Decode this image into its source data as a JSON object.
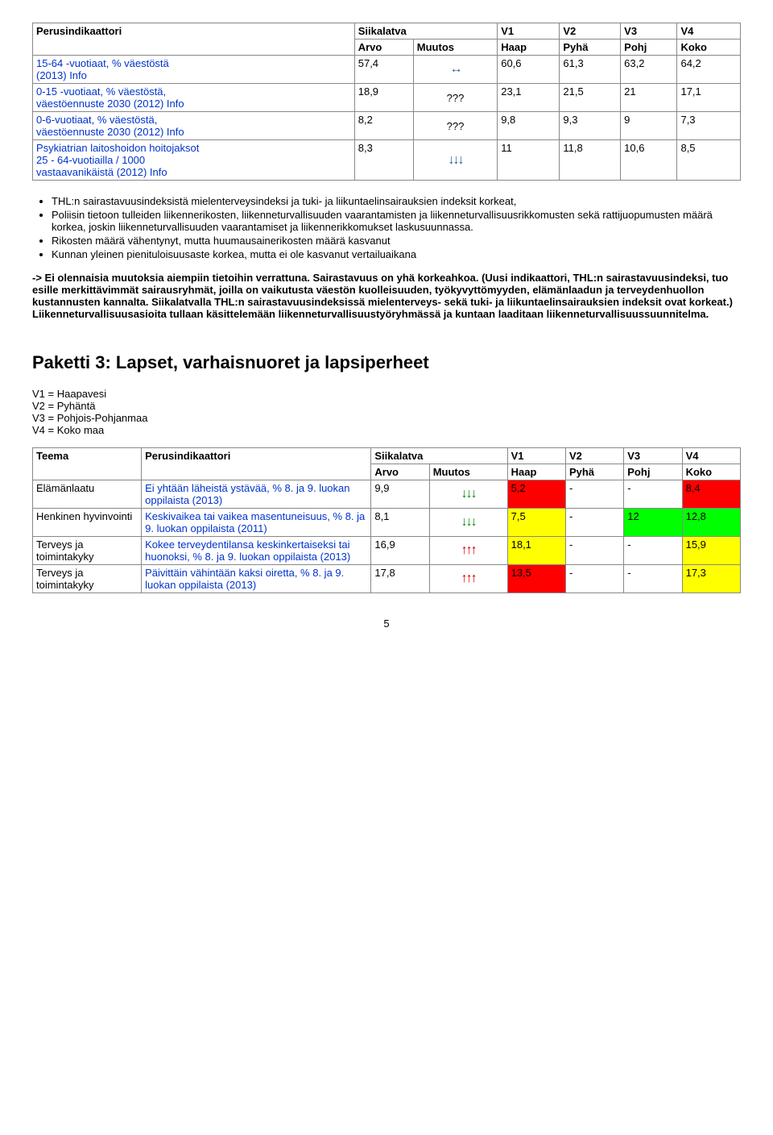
{
  "table1": {
    "headers": {
      "perus": "Perusindikaattori",
      "siika": "Siikalatva",
      "arvo": "Arvo",
      "muutos": "Muutos",
      "v1": "V1",
      "v2": "V2",
      "v3": "V3",
      "v4": "V4",
      "haap": "Haap",
      "pyha": "Pyhä",
      "pohj": "Pohj",
      "koko": "Koko"
    },
    "rows": [
      {
        "ind_a": "15-64 -vuotiaat, % väestöstä",
        "ind_b": "(2013) Info",
        "arvo": "57,4",
        "muutos_glyph": "↔",
        "muutos_color": "#2a5aa0",
        "v1": "60,6",
        "v2": "61,3",
        "v3": "63,2",
        "v4": "64,2"
      },
      {
        "ind_a": "0-15 -vuotiaat, % väestöstä,",
        "ind_b": "väestöennuste 2030 (2012) Info",
        "arvo": "18,9",
        "muutos_text": "???",
        "v1": "23,1",
        "v2": "21,5",
        "v3": "21",
        "v4": "17,1"
      },
      {
        "ind_a": "0-6-vuotiaat, % väestöstä,",
        "ind_b": "väestöennuste 2030 (2012) Info",
        "arvo": "8,2",
        "muutos_text": "???",
        "v1": "9,8",
        "v2": "9,3",
        "v3": "9",
        "v4": "7,3"
      },
      {
        "ind_a": "Psykiatrian laitoshoidon hoitojaksot",
        "ind_b": "25 - 64-vuotiailla / 1000",
        "ind_c": "vastaavanikäistä (2012) Info",
        "arvo": "8,3",
        "muutos_glyph": "↓↓↓",
        "muutos_color": "#2a5aa0",
        "v1": "11",
        "v2": "11,8",
        "v3": "10,6",
        "v4": "8,5"
      }
    ]
  },
  "bullets": [
    "THL:n sairastavuusindeksistä mielenterveysindeksi ja tuki- ja liikuntaelinsairauksien indeksit korkeat,",
    "Poliisin tietoon tulleiden liikennerikosten,  liikenneturvallisuuden vaarantamisten ja liikenneturvallisuusrikkomusten sekä rattijuopumusten määrä korkea, joskin liikenneturvallisuuden vaarantamiset ja liikennerikkomukset laskusuunnassa.",
    "Rikosten määrä vähentynyt, mutta huumausainerikosten määrä kasvanut",
    "Kunnan yleinen pienituloisuusaste korkea, mutta ei ole kasvanut vertailuaikana"
  ],
  "bold_para": "-> Ei olennaisia muutoksia aiempiin tietoihin verrattuna. Sairastavuus on yhä korkeahkoa. (Uusi indikaattori, THL:n sairastavuusindeksi, tuo esille merkittävimmät sairausryhmät, joilla on vaikutusta väestön kuolleisuuden, työkyvyttömyyden, elämänlaadun ja terveydenhuollon kustannusten kannalta. Siikalatvalla THL:n sairastavuusindeksissä mielenterveys- sekä tuki- ja liikuntaelinsairauksien indeksit ovat korkeat.) Liikenneturvallisuusasioita tullaan käsittelemään liikenneturvallisuustyöryhmässä ja kuntaan laaditaan liikenneturvallisuussuunnitelma.",
  "section_title": "Paketti 3: Lapset, varhaisnuoret ja lapsiperheet",
  "legend": {
    "v1": "V1 = Haapavesi",
    "v2": "V2 = Pyhäntä",
    "v3": "V3 = Pohjois-Pohjanmaa",
    "v4": "V4 = Koko maa"
  },
  "table2": {
    "headers": {
      "teema": "Teema",
      "perus": "Perusindikaattori",
      "siika": "Siikalatva",
      "arvo": "Arvo",
      "muutos": "Muutos",
      "v1": "V1",
      "v2": "V2",
      "v3": "V3",
      "v4": "V4",
      "haap": "Haap",
      "pyha": "Pyhä",
      "pohj": "Pohj",
      "koko": "Koko"
    },
    "rows": [
      {
        "teema": "Elämänlaatu",
        "ind": "Ei yhtään läheistä ystävää, % 8. ja 9. luokan oppilaista (2013)",
        "arvo": "9,9",
        "muutos_glyph": "↓↓↓",
        "muutos_color": "#0a8a0a",
        "v1": "5,2",
        "v1_bg": "#ff0000",
        "v2": "-",
        "v2_bg": "",
        "v3": "-",
        "v3_bg": "",
        "v4": "8,4",
        "v4_bg": "#ff0000"
      },
      {
        "teema": "Henkinen hyvinvointi",
        "ind": "Keskivaikea tai vaikea masentuneisuus, % 8. ja 9. luokan oppilaista (2011)",
        "arvo": "8,1",
        "muutos_glyph": "↓↓↓",
        "muutos_color": "#0a8a0a",
        "v1": "7,5",
        "v1_bg": "#ffff00",
        "v2": "-",
        "v2_bg": "",
        "v3": "12",
        "v3_bg": "#00ff00",
        "v4": "12,8",
        "v4_bg": "#00ff00"
      },
      {
        "teema": "Terveys ja toimintakyky",
        "ind": "Kokee terveydentilansa keskinkertaiseksi tai huonoksi, % 8. ja 9. luokan oppilaista (2013)",
        "arvo": "16,9",
        "muutos_glyph": "↑↑↑",
        "muutos_color": "#cc0000",
        "v1": "18,1",
        "v1_bg": "#ffff00",
        "v2": "-",
        "v2_bg": "",
        "v3": "-",
        "v3_bg": "",
        "v4": "15,9",
        "v4_bg": "#ffff00"
      },
      {
        "teema": "Terveys ja toimintakyky",
        "ind": "Päivittäin vähintään kaksi oiretta, % 8. ja 9. luokan oppilaista (2013)",
        "arvo": "17,8",
        "muutos_glyph": "↑↑↑",
        "muutos_color": "#cc0000",
        "v1": "13,5",
        "v1_bg": "#ff0000",
        "v2": "-",
        "v2_bg": "",
        "v3": "-",
        "v3_bg": "",
        "v4": "17,3",
        "v4_bg": "#ffff00"
      }
    ]
  },
  "page_number": "5"
}
